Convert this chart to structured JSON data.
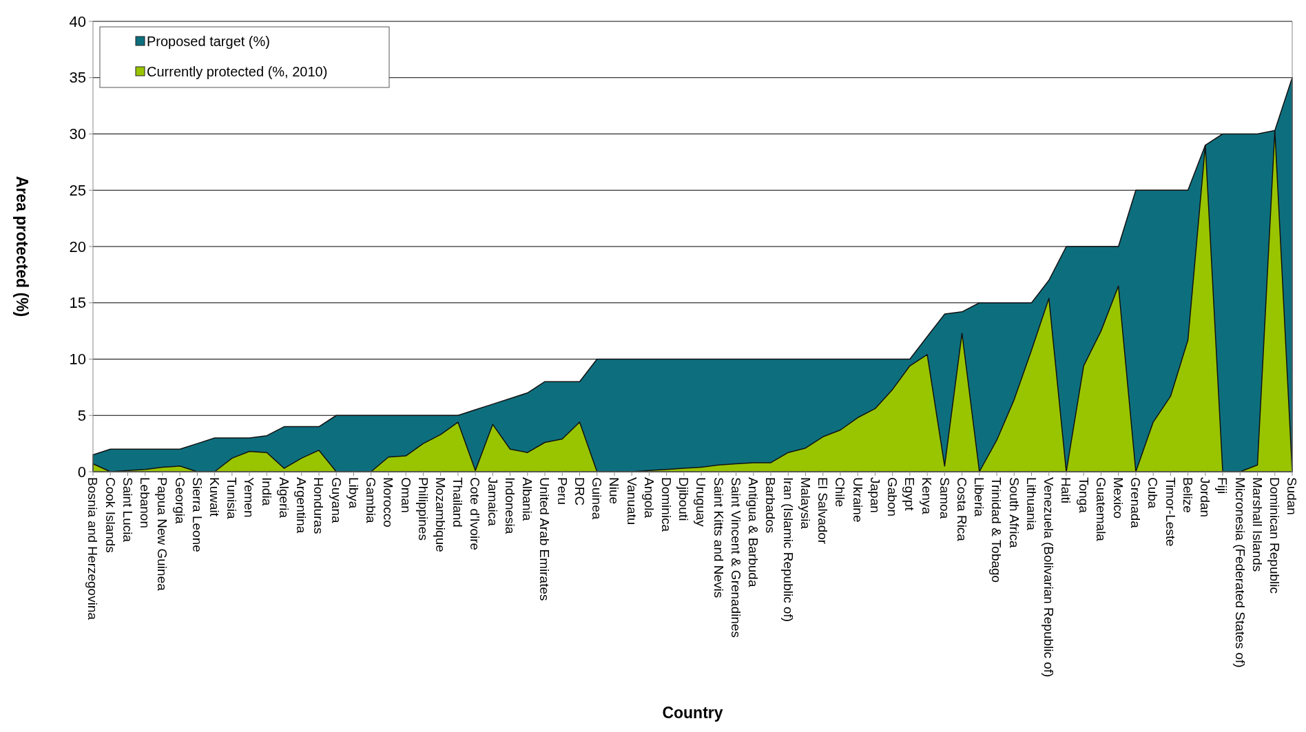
{
  "chart_data": {
    "type": "area",
    "xlabel": "Country",
    "ylabel": "Area protected (%)",
    "categories": [
      "Bosnia and Herzegovina",
      "Cook Islands",
      "Saint Lucia",
      "Lebanon",
      "Papua New Guinea",
      "Georgia",
      "Sierra Leone",
      "Kuwait",
      "Tunisia",
      "Yemen",
      "India",
      "Algeria",
      "Argentina",
      "Honduras",
      "Guyana",
      "Libya",
      "Gambia",
      "Morocco",
      "Oman",
      "Philippines",
      "Mozambique",
      "Thailand",
      "Cote d'Ivoire",
      "Jamaica",
      "Indonesia",
      "Albania",
      "United Arab Emirates",
      "Peru",
      "DRC",
      "Guinea",
      "Niue",
      "Vanuatu",
      "Angola",
      "Dominica",
      "Djibouti",
      "Uruguay",
      "Saint Kitts and Nevis",
      "Saint Vincent & Grenadines",
      "Antigua & Barbuda",
      "Barbados",
      "Iran (Islamic Republic of)",
      "Malaysia",
      "El Salvador",
      "Chile",
      "Ukraine",
      "Japan",
      "Gabon",
      "Egypt",
      "Kenya",
      "Samoa",
      "Costa Rica",
      "Liberia",
      "Trinidad & Tobago",
      "South Africa",
      "Lithuania",
      "Venezuela (Bolivarian Republic of)",
      "Haiti",
      "Tonga",
      "Guatemala",
      "Mexico",
      "Grenada",
      "Cuba",
      "Timor-Leste",
      "Belize",
      "Jordan",
      "Fiji",
      "Micronesia (Federated States of)",
      "Marshall Islands",
      "Dominican Republic",
      "Sudan"
    ],
    "series": [
      {
        "name": "Proposed target (%)",
        "color": "#0d6f7e",
        "values": [
          1.5,
          2,
          2,
          2,
          2,
          2,
          2.5,
          3,
          3,
          3,
          3.2,
          4,
          4,
          4,
          5,
          5,
          5,
          5,
          5,
          5,
          5,
          5,
          5.5,
          6,
          6.5,
          7,
          8,
          8,
          8,
          10,
          10,
          10,
          10,
          10,
          10,
          10,
          10,
          10,
          10,
          10,
          10,
          10,
          10,
          10,
          10,
          10,
          10,
          10,
          12,
          14,
          14.2,
          15,
          15,
          15,
          15,
          17,
          20,
          20,
          20,
          20,
          25,
          25,
          25,
          25,
          29,
          30,
          30,
          30,
          30.3,
          35
        ]
      },
      {
        "name": "Currently protected (%, 2010)",
        "color": "#99c400",
        "values": [
          0.7,
          0,
          0.1,
          0.2,
          0.4,
          0.5,
          0,
          0,
          1.2,
          1.8,
          1.7,
          0.3,
          1.2,
          1.9,
          0,
          0,
          0,
          1.3,
          1.4,
          2.5,
          3.3,
          4.4,
          0.1,
          4.2,
          2.0,
          1.7,
          2.6,
          2.9,
          4.4,
          0,
          0,
          0,
          0.1,
          0.2,
          0.3,
          0.4,
          0.6,
          0.7,
          0.8,
          0.8,
          1.7,
          2.1,
          3.1,
          3.7,
          4.8,
          5.6,
          7.3,
          9.4,
          10.4,
          0.5,
          12.3,
          0,
          2.8,
          6.4,
          10.8,
          15.4,
          0,
          9.4,
          12.5,
          16.5,
          0,
          4.4,
          6.7,
          11.7,
          29,
          0,
          0,
          0.6,
          30.3,
          0
        ]
      }
    ],
    "ylim": [
      0,
      40
    ],
    "yticks": [
      0,
      5,
      10,
      15,
      20,
      25,
      30,
      35,
      40
    ],
    "grid": "y",
    "legend": "top left"
  }
}
